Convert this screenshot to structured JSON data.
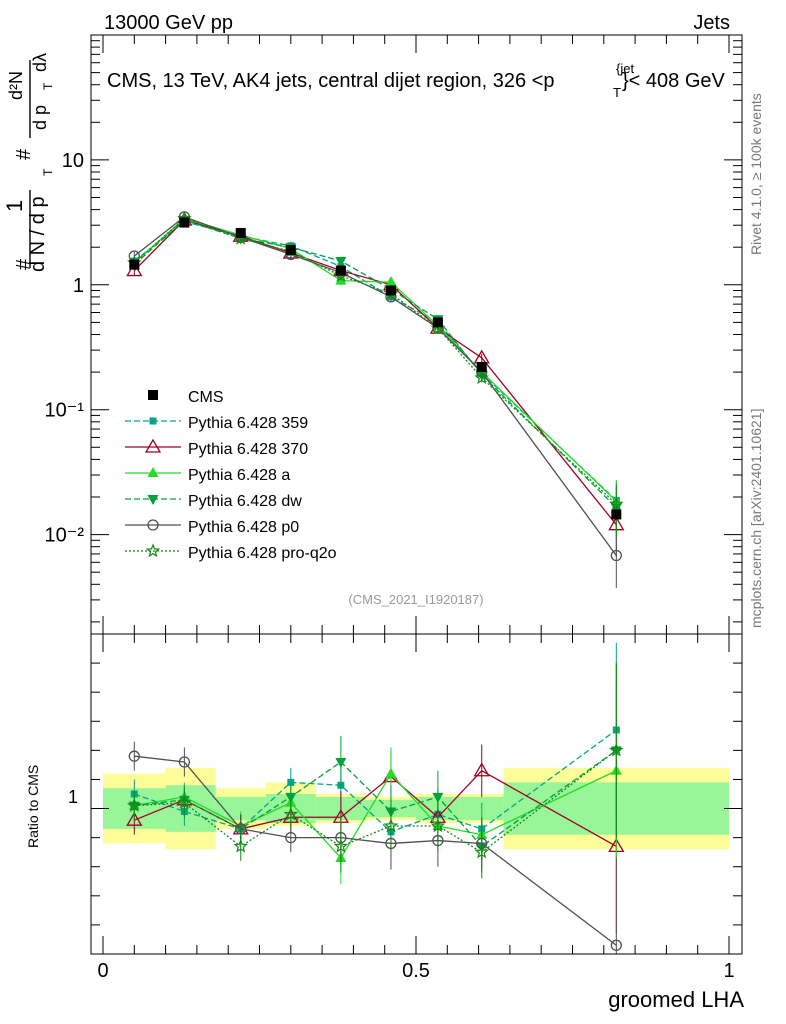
{
  "header": {
    "energy_label": "13000 GeV pp",
    "category_label": "Jets",
    "plot_title": "CMS, 13 TeV, AK4 jets, central dijet region, 326 <p",
    "title_sup": "{jet",
    "title_sub": "T",
    "title_end": "}< 408 GeV"
  },
  "side": {
    "rivet": "Rivet 4.1.0, ≥ 100k events",
    "mcplots": "mcplots.cern.ch [arXiv:2401.10621]"
  },
  "analysis_id": "(CMS_2021_I1920187)",
  "ylabel_main": {
    "hash1": "#",
    "one": "1",
    "dn": "d N / d p",
    "sub_t": "T",
    "hash2": "#",
    "d2n": "d²N",
    "dpt": "d p",
    "sub_t2": "T",
    "dlam": "dλ"
  },
  "colors": {
    "data": "#000000",
    "p359": "#00a58a",
    "p370": "#a00025",
    "pa": "#22dd22",
    "pdw": "#00a23c",
    "pp0": "#505050",
    "pq2o": "#138a13",
    "band_inner": "#98f598",
    "band_outer": "#fdfd9a"
  },
  "chart_data": [
    {
      "type": "scatter",
      "title": "CMS, 13 TeV, AK4 jets, central dijet region, 326 <p_T^{jet}< 408 GeV",
      "xlabel": "groomed LHA",
      "ylabel": "(1/dN/dpT) d²N/(dpT dλ)",
      "yscale": "log",
      "xlim": [
        0,
        1
      ],
      "ylim": [
        0.0016,
        100
      ],
      "y_ticklabels": [
        "10⁻²",
        "10⁻¹",
        "1",
        "10"
      ],
      "x": [
        0.05,
        0.13,
        0.22,
        0.3,
        0.38,
        0.46,
        0.535,
        0.605,
        0.82
      ],
      "legend_position": "center-left",
      "series": [
        {
          "name": "CMS",
          "values": [
            1.45,
            3.15,
            2.6,
            1.9,
            1.3,
            0.9,
            0.5,
            0.22,
            0.0145
          ]
        },
        {
          "name": "Pythia 6.428 359",
          "values": [
            1.55,
            3.2,
            2.45,
            2.05,
            1.4,
            0.8,
            0.5,
            0.195,
            0.0188
          ]
        },
        {
          "name": "Pythia 6.428 370",
          "values": [
            1.3,
            3.3,
            2.45,
            1.8,
            1.3,
            1.0,
            0.45,
            0.26,
            0.012
          ]
        },
        {
          "name": "Pythia 6.428 a",
          "values": [
            1.5,
            3.4,
            2.5,
            1.95,
            1.08,
            1.05,
            0.47,
            0.2,
            0.0185
          ]
        },
        {
          "name": "Pythia 6.428 dw",
          "values": [
            1.45,
            3.3,
            2.35,
            2.0,
            1.55,
            0.92,
            0.53,
            0.19,
            0.0165
          ]
        },
        {
          "name": "Pythia 6.428 p0",
          "values": [
            1.7,
            3.5,
            2.4,
            1.75,
            1.25,
            0.8,
            0.45,
            0.2,
            0.0068
          ]
        },
        {
          "name": "Pythia 6.428 pro-q2o",
          "values": [
            1.5,
            3.4,
            2.35,
            1.85,
            1.18,
            0.85,
            0.45,
            0.18,
            0.0175
          ]
        }
      ]
    },
    {
      "type": "line",
      "ylabel": "Ratio to CMS",
      "xlabel": "groomed LHA",
      "xlim": [
        0,
        1
      ],
      "ylim": [
        0.5,
        1.6
      ],
      "x_ticklabels": [
        "0",
        "0.5",
        "1"
      ],
      "y_ticklabels": [
        "1"
      ],
      "x": [
        0.05,
        0.13,
        0.22,
        0.3,
        0.38,
        0.46,
        0.535,
        0.605,
        0.82
      ],
      "bins": [
        [
          0,
          0.1
        ],
        [
          0.1,
          0.18
        ],
        [
          0.18,
          0.26
        ],
        [
          0.26,
          0.34
        ],
        [
          0.34,
          0.42
        ],
        [
          0.42,
          0.5
        ],
        [
          0.5,
          0.57
        ],
        [
          0.57,
          0.64
        ],
        [
          0.64,
          1.0
        ]
      ],
      "band_inner": [
        [
          0.93,
          1.07
        ],
        [
          0.92,
          1.08
        ],
        [
          0.96,
          1.04
        ],
        [
          0.95,
          1.05
        ],
        [
          0.96,
          1.04
        ],
        [
          0.97,
          1.03
        ],
        [
          0.96,
          1.04
        ],
        [
          0.96,
          1.04
        ],
        [
          0.91,
          1.09
        ]
      ],
      "band_outer": [
        [
          0.88,
          1.12
        ],
        [
          0.86,
          1.14
        ],
        [
          0.93,
          1.07
        ],
        [
          0.94,
          1.09
        ],
        [
          0.95,
          1.05
        ],
        [
          0.96,
          1.04
        ],
        [
          0.95,
          1.05
        ],
        [
          0.95,
          1.05
        ],
        [
          0.86,
          1.14
        ]
      ],
      "series": [
        {
          "name": "Pythia 6.428 359",
          "values": [
            1.05,
            0.99,
            0.93,
            1.09,
            1.08,
            0.92,
            0.98,
            0.93,
            1.27
          ]
        },
        {
          "name": "Pythia 6.428 370",
          "values": [
            0.96,
            1.03,
            0.93,
            0.97,
            0.97,
            1.11,
            0.97,
            1.13,
            0.87
          ]
        },
        {
          "name": "Pythia 6.428 a",
          "values": [
            1.01,
            1.04,
            0.94,
            1.02,
            0.83,
            1.12,
            0.94,
            0.91,
            1.13
          ]
        },
        {
          "name": "Pythia 6.428 dw",
          "values": [
            1.01,
            1.03,
            0.93,
            1.04,
            1.16,
            0.99,
            1.04,
            0.87,
            1.2
          ]
        },
        {
          "name": "Pythia 6.428 p0",
          "values": [
            1.18,
            1.16,
            0.93,
            0.9,
            0.9,
            0.88,
            0.89,
            0.88,
            0.53
          ]
        },
        {
          "name": "Pythia 6.428 pro-q2o",
          "values": [
            1.01,
            1.02,
            0.87,
            0.98,
            0.87,
            0.94,
            0.94,
            0.85,
            1.2
          ]
        }
      ]
    }
  ]
}
